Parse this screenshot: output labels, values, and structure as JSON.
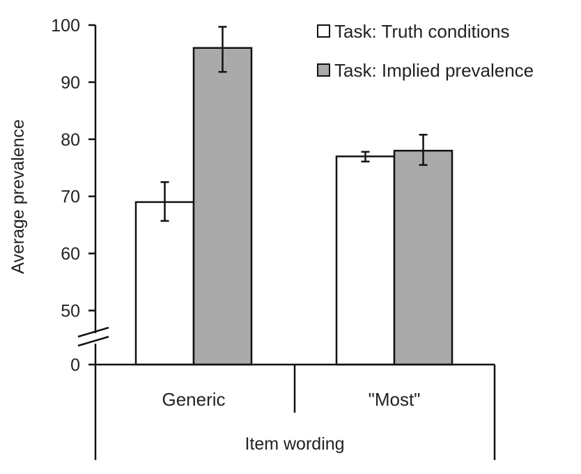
{
  "chart_data": {
    "type": "bar",
    "xlabel": "Item wording",
    "ylabel": "Average prevalence",
    "categories": [
      "Generic",
      "\"Most\""
    ],
    "series": [
      {
        "name": "Task: Truth conditions",
        "color": "#ffffff",
        "values": [
          69,
          77
        ],
        "error": [
          [
            65.7,
            72.5
          ],
          [
            76.1,
            77.8
          ]
        ]
      },
      {
        "name": "Task: Implied prevalence",
        "color": "#aaaaaa",
        "values": [
          96,
          78
        ],
        "error": [
          [
            91.8,
            99.7
          ],
          [
            75.5,
            80.8
          ]
        ]
      }
    ],
    "yticks": [
      0,
      50,
      60,
      70,
      80,
      90,
      100
    ],
    "ylim": [
      45,
      100
    ],
    "axis_break": true,
    "legend_position": "top-right",
    "grid": false
  }
}
